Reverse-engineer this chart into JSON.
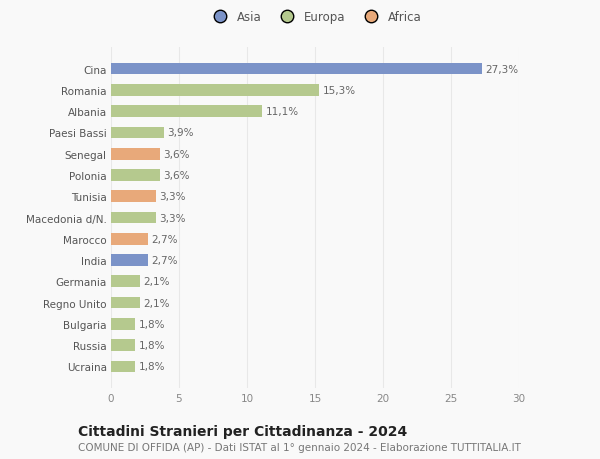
{
  "categories": [
    "Ucraina",
    "Russia",
    "Bulgaria",
    "Regno Unito",
    "Germania",
    "India",
    "Marocco",
    "Macedonia d/N.",
    "Tunisia",
    "Polonia",
    "Senegal",
    "Paesi Bassi",
    "Albania",
    "Romania",
    "Cina"
  ],
  "values": [
    1.8,
    1.8,
    1.8,
    2.1,
    2.1,
    2.7,
    2.7,
    3.3,
    3.3,
    3.6,
    3.6,
    3.9,
    11.1,
    15.3,
    27.3
  ],
  "labels": [
    "1,8%",
    "1,8%",
    "1,8%",
    "2,1%",
    "2,1%",
    "2,7%",
    "2,7%",
    "3,3%",
    "3,3%",
    "3,6%",
    "3,6%",
    "3,9%",
    "11,1%",
    "15,3%",
    "27,3%"
  ],
  "continents": [
    "Europa",
    "Europa",
    "Europa",
    "Europa",
    "Europa",
    "Asia",
    "Africa",
    "Europa",
    "Africa",
    "Europa",
    "Africa",
    "Europa",
    "Europa",
    "Europa",
    "Asia"
  ],
  "colors": {
    "Asia": "#7b93c8",
    "Europa": "#b5c98e",
    "Africa": "#e8a97a"
  },
  "title": "Cittadini Stranieri per Cittadinanza - 2024",
  "subtitle": "COMUNE DI OFFIDA (AP) - Dati ISTAT al 1° gennaio 2024 - Elaborazione TUTTITALIA.IT",
  "xlim": [
    0,
    30
  ],
  "xticks": [
    0,
    5,
    10,
    15,
    20,
    25,
    30
  ],
  "background_color": "#f9f9f9",
  "grid_color": "#e8e8e8",
  "title_fontsize": 10,
  "subtitle_fontsize": 7.5,
  "label_fontsize": 7.5,
  "tick_fontsize": 7.5,
  "legend_fontsize": 8.5
}
